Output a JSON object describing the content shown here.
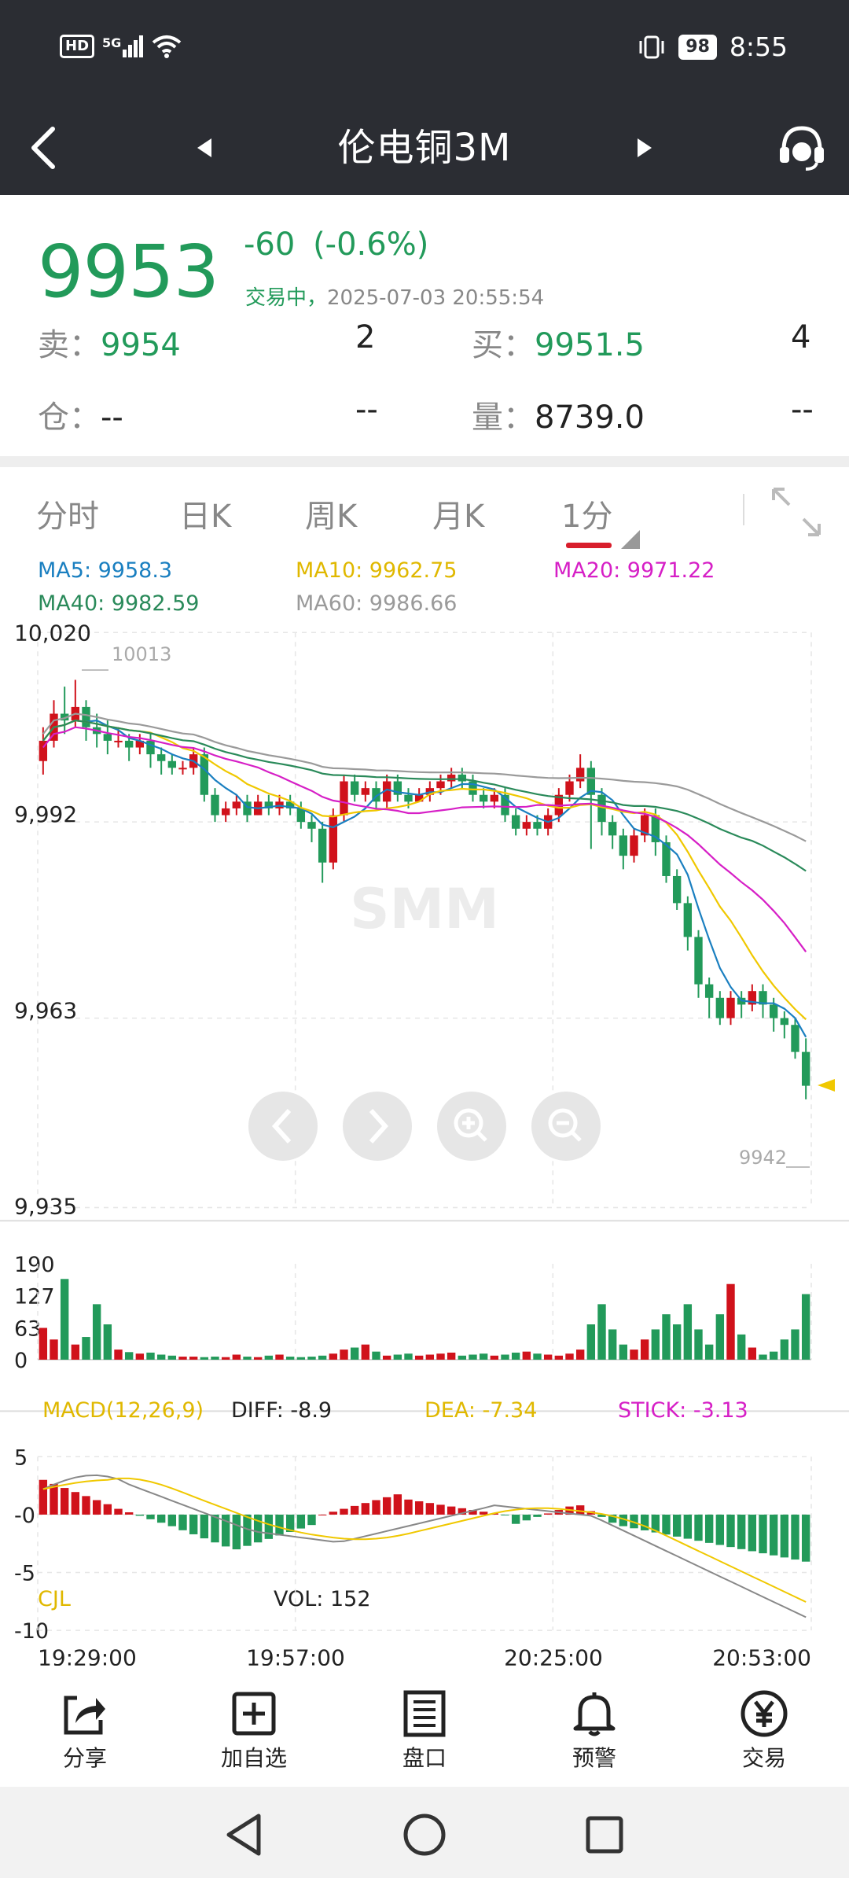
{
  "status_bar": {
    "hd": "HD",
    "net": "5G",
    "battery": "98",
    "time": "8:55"
  },
  "nav": {
    "title": "伦电铜3M"
  },
  "quote": {
    "last": "9953",
    "change": "-60",
    "change_pct": "(-0.6%)",
    "trading": "交易中，",
    "datetime": "2025-07-03 20:55:54",
    "sell_label": "卖：",
    "sell_price": "9954",
    "sell_qty": "2",
    "buy_label": "买：",
    "buy_price": "9951.5",
    "buy_qty": "4",
    "oi_label": "仓：",
    "oi_value": "--",
    "oi_change": "--",
    "vol_label": "量：",
    "vol_value": "8739.0",
    "vol_change": "--"
  },
  "tabs": [
    {
      "label": "分时"
    },
    {
      "label": "日K"
    },
    {
      "label": "周K"
    },
    {
      "label": "月K"
    },
    {
      "label": "1分"
    }
  ],
  "ma": {
    "ma5": "MA5: 9958.3",
    "ma10": "MA10: 9962.75",
    "ma20": "MA20: 9971.22",
    "ma40": "MA40: 9982.59",
    "ma60": "MA60: 9986.66"
  },
  "colors": {
    "up": "#d0121b",
    "down": "#229a5a",
    "ma5": "#1a7fc0",
    "ma10": "#f0c800",
    "ma20": "#d61fc6",
    "ma40": "#2a8a5a",
    "ma60": "#9a9a9a"
  },
  "chart_data": [
    {
      "type": "candlestick",
      "title": "",
      "y_ticks": [
        "10,020",
        "9,992",
        "9,963",
        "9,935"
      ],
      "ylim": [
        9935,
        10020
      ],
      "high_label": "10013",
      "low_label": "9942",
      "watermark": "SMM",
      "x_ticks": [
        "19:29:00",
        "19:57:00",
        "20:25:00",
        "20:53:00"
      ]
    },
    {
      "type": "bar",
      "title": "CJL",
      "label": "VOL: 152",
      "y_ticks": [
        "190",
        "127",
        "63",
        "0"
      ],
      "ylim": [
        0,
        190
      ]
    },
    {
      "type": "line",
      "title": "MACD(12,26,9)",
      "diff": "DIFF: -8.9",
      "dea": "DEA: -7.34",
      "stick": "STICK: -3.13",
      "y_ticks": [
        "5",
        "-0",
        "-5",
        "-10"
      ],
      "ylim": [
        -10,
        5
      ]
    }
  ],
  "bottom_bar": [
    {
      "label": "分享",
      "icon": "share-icon"
    },
    {
      "label": "加自选",
      "icon": "add-favorite-icon"
    },
    {
      "label": "盘口",
      "icon": "order-book-icon"
    },
    {
      "label": "预警",
      "icon": "bell-icon"
    },
    {
      "label": "交易",
      "icon": "yen-icon"
    }
  ]
}
